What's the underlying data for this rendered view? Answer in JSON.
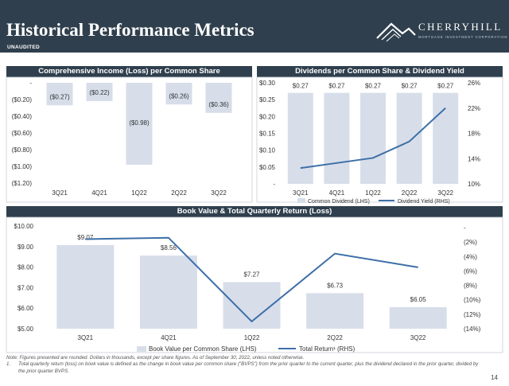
{
  "header": {
    "title": "Historical Performance Metrics",
    "subtitle": "UNAUDITED",
    "logo_name": "CHERRYHILL",
    "logo_tagline": "MORTGAGE INVESTMENT CORPORATION",
    "logo_icon": "mountain-logo-icon"
  },
  "colors": {
    "navy": "#2f3f4d",
    "bar": "#d7deea",
    "line": "#3d6fa7"
  },
  "chart_data": [
    {
      "id": "ci",
      "type": "bar",
      "title": "Comprehensive Income (Loss) per Common Share",
      "categories": [
        "3Q21",
        "4Q21",
        "1Q22",
        "2Q22",
        "3Q22"
      ],
      "values": [
        -0.27,
        -0.22,
        -0.98,
        -0.26,
        -0.36
      ],
      "value_labels": [
        "($0.27)",
        "($0.22)",
        "($0.98)",
        "($0.26)",
        "($0.36)"
      ],
      "ylim": [
        -1.2,
        0
      ],
      "yticks": [
        0,
        -0.2,
        -0.4,
        -0.6,
        -0.8,
        -1.0,
        -1.2
      ],
      "ytick_labels": [
        "-",
        "($0.20)",
        "($0.40)",
        "($0.60)",
        "($0.80)",
        "($1.00)",
        "($1.20)"
      ],
      "grid": false
    },
    {
      "id": "div",
      "type": "bar+line",
      "title": "Dividends per Common Share & Dividend Yield",
      "categories": [
        "3Q21",
        "4Q21",
        "1Q22",
        "2Q22",
        "3Q22"
      ],
      "series": [
        {
          "name": "Common Dividend (LHS)",
          "type": "bar",
          "axis": "left",
          "values": [
            0.27,
            0.27,
            0.27,
            0.27,
            0.27
          ],
          "labels": [
            "$0.27",
            "$0.27",
            "$0.27",
            "$0.27",
            "$0.27"
          ]
        },
        {
          "name": "Dividend Yield (RHS)",
          "type": "line",
          "axis": "right",
          "values": [
            12.5,
            13.3,
            14.1,
            16.7,
            22.0
          ]
        }
      ],
      "left_ylim": [
        0,
        0.3
      ],
      "left_ticks": [
        0,
        0.05,
        0.1,
        0.15,
        0.2,
        0.25,
        0.3
      ],
      "left_tick_labels": [
        "-",
        "$0.05",
        "$0.10",
        "$0.15",
        "$0.20",
        "$0.25",
        "$0.30"
      ],
      "right_ylim": [
        10,
        26
      ],
      "right_ticks": [
        10,
        14,
        18,
        22,
        26
      ],
      "right_tick_labels": [
        "10%",
        "14%",
        "18%",
        "22%",
        "26%"
      ],
      "legend": "bottom"
    },
    {
      "id": "bv",
      "type": "bar+line",
      "title": "Book Value & Total Quarterly Return (Loss)",
      "categories": [
        "3Q21",
        "4Q21",
        "1Q22",
        "2Q22",
        "3Q22"
      ],
      "series": [
        {
          "name": "Book Value per Common Share (LHS)",
          "type": "bar",
          "axis": "left",
          "values": [
            9.07,
            8.56,
            7.27,
            6.73,
            6.05
          ],
          "labels": [
            "$9.07",
            "$8.56",
            "$7.27",
            "$6.73",
            "$6.05"
          ]
        },
        {
          "name": "Total Return¹ (RHS)",
          "type": "line",
          "axis": "right",
          "values": [
            -1.6,
            -1.4,
            -13.0,
            -3.6,
            -5.5
          ]
        }
      ],
      "left_ylim": [
        5,
        10
      ],
      "left_ticks": [
        5,
        6,
        7,
        8,
        9,
        10
      ],
      "left_tick_labels": [
        "$5.00",
        "$6.00",
        "$7.00",
        "$8.00",
        "$9.00",
        "$10.00"
      ],
      "right_ylim": [
        -14,
        0
      ],
      "right_ticks": [
        0,
        -2,
        -4,
        -6,
        -8,
        -10,
        -12,
        -14
      ],
      "right_tick_labels": [
        "-",
        "(2%)",
        "(4%)",
        "(6%)",
        "(8%)",
        "(10%)",
        "(12%)",
        "(14%)"
      ],
      "legend": "bottom"
    }
  ],
  "footer": {
    "note": "Note: Figures presented are rounded. Dollars in thousands, except per share figures. As of September 30, 2022, unless noted otherwise.",
    "fn_number": "1.",
    "fn_text": "Total quarterly return (loss) on book value is defined as the change in book value per common share (“BVPS”) from the prior quarter to the current quarter, plus the dividend declared in the prior quarter, divided by the prior quarter BVPS.",
    "page_number": "14"
  }
}
